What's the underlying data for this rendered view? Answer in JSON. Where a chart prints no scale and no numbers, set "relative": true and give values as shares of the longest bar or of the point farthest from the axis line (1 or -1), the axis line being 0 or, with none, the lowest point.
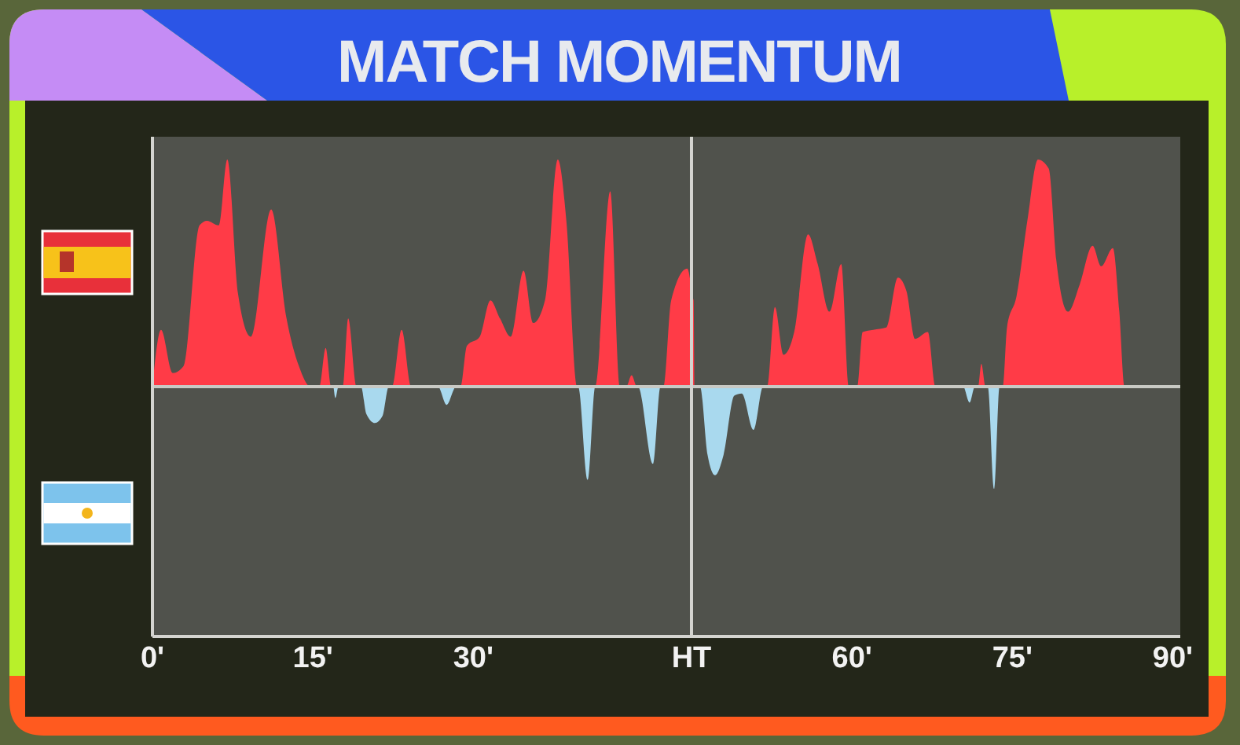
{
  "chart_data": [
    {
      "type": "area",
      "title": "MATCH MOMENTUM",
      "relative": true,
      "grid": false,
      "xlim": [
        0,
        50.4
      ],
      "xticks": [
        {
          "value": 0,
          "label": "0'"
        },
        {
          "value": 15,
          "label": "15'"
        },
        {
          "value": 30,
          "label": "30'"
        }
      ],
      "series": [
        {
          "color": "#ff3b47",
          "x": [
            0,
            0.8,
            1.9,
            2.9,
            4.4,
            5.1,
            6.2,
            7.0,
            8.0,
            9.2,
            11.1,
            12.5,
            13.7,
            14.8,
            15.6,
            16.2,
            16.7,
            17.8,
            18.3,
            19.1,
            22.4,
            23.3,
            24.2,
            28.8,
            29.4,
            30.6,
            31.6,
            32.5,
            33.5,
            34.7,
            35.6,
            36.7,
            37.9,
            38.7,
            39.7,
            41.4,
            42.8,
            43.7,
            44.3,
            44.8,
            45.3,
            47.8,
            48.5,
            50.0,
            50.4
          ],
          "values": [
            0,
            0.25,
            0.06,
            0.09,
            0.71,
            0.73,
            0.71,
            1,
            0.41,
            0.22,
            0.78,
            0.31,
            0.09,
            0,
            0,
            0.17,
            0,
            0,
            0.3,
            0,
            0,
            0.25,
            0,
            0,
            0.18,
            0.22,
            0.38,
            0.3,
            0.22,
            0.51,
            0.28,
            0.38,
            1,
            0.73,
            0,
            0,
            0.86,
            0,
            0,
            0.05,
            0,
            0,
            0.38,
            0.52,
            0.43
          ]
        },
        {
          "color": "#a9d9ee",
          "x": [
            0,
            16.9,
            17.1,
            17.4,
            19.5,
            20.0,
            20.8,
            21.5,
            22.1,
            26.7,
            27.5,
            28.4,
            39.8,
            40.7,
            41.4,
            45.4,
            46.8,
            47.5,
            50.4
          ],
          "values": [
            0,
            0,
            -0.05,
            0,
            0,
            -0.12,
            -0.16,
            -0.13,
            0,
            0,
            -0.08,
            0,
            0,
            -0.41,
            0,
            0,
            -0.34,
            0,
            0
          ]
        }
      ]
    },
    {
      "type": "area",
      "relative": true,
      "grid": false,
      "xlim": [
        45,
        90.7
      ],
      "xticks": [
        {
          "value": 45,
          "label": "HT"
        },
        {
          "value": 60,
          "label": "60'"
        },
        {
          "value": 75,
          "label": "75'"
        },
        {
          "value": 90,
          "label": "90'"
        }
      ],
      "series": [
        {
          "color": "#ff3b47",
          "x": [
            45,
            45.2,
            45.3,
            52.1,
            52.8,
            53.6,
            54.6,
            55.9,
            56.8,
            57.9,
            59.0,
            59.7,
            60.5,
            61.0,
            62.0,
            63.2,
            64.3,
            65.1,
            65.9,
            67.1,
            67.8,
            71.8,
            72.1,
            72.5,
            74.1,
            74.5,
            75.4,
            76.4,
            77.4,
            78.4,
            79.1,
            80.2,
            81.3,
            82.5,
            83.3,
            84.4,
            85.0,
            85.5,
            90.7
          ],
          "values": [
            0.4,
            0.38,
            0,
            0,
            0.35,
            0.14,
            0.24,
            0.67,
            0.54,
            0.33,
            0.54,
            0,
            0,
            0.24,
            0.25,
            0.26,
            0.48,
            0.42,
            0.21,
            0.24,
            0,
            0,
            0.1,
            0,
            0,
            0.26,
            0.4,
            0.73,
            1,
            0.96,
            0.56,
            0.33,
            0.45,
            0.62,
            0.53,
            0.61,
            0.33,
            0,
            0
          ]
        },
        {
          "color": "#a9d9ee",
          "x": [
            45,
            45.8,
            46.5,
            47.2,
            48.0,
            49.0,
            49.7,
            50.8,
            51.7,
            70.4,
            71.0,
            71.5,
            72.7,
            73.3,
            73.8,
            90.7
          ],
          "values": [
            0,
            0,
            -0.3,
            -0.39,
            -0.3,
            -0.04,
            -0.03,
            -0.19,
            0,
            0,
            -0.07,
            0,
            0,
            -0.45,
            0,
            0
          ]
        }
      ]
    }
  ]
}
